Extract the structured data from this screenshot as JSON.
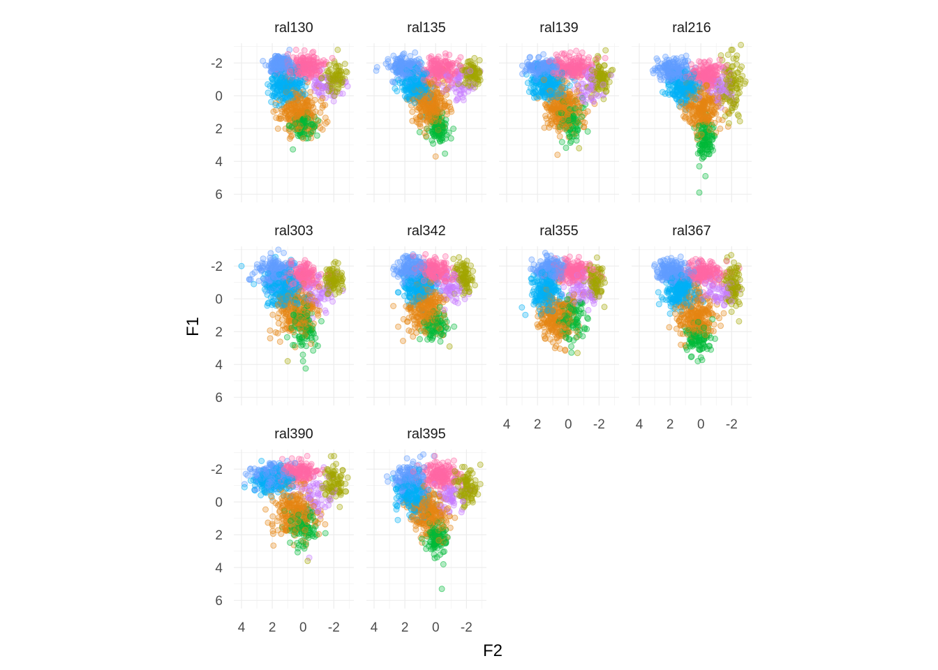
{
  "chart_data": {
    "type": "scatter",
    "xlabel": "F2",
    "ylabel": "F1",
    "x_reversed": true,
    "y_reversed": true,
    "xlim": [
      4.5,
      -3.3
    ],
    "ylim": [
      -3.2,
      6.5
    ],
    "x_ticks": [
      4,
      2,
      0,
      -2
    ],
    "y_ticks": [
      -2,
      0,
      2,
      4,
      6
    ],
    "grid": true,
    "legend": "none",
    "point_alpha": 0.3,
    "group_colors": [
      "#619CFF",
      "#00B0F6",
      "#F8766D",
      "#FF67A4",
      "#A3A500",
      "#E68613",
      "#00BA38",
      "#C77CFF",
      "#7CAE00",
      "#00BFC4"
    ],
    "panels": [
      {
        "title": "ral130",
        "clusters": [
          {
            "color": "#619CFF",
            "cx": 1.5,
            "cy": -1.9,
            "sx": 0.4,
            "sy": 0.3,
            "n": 180
          },
          {
            "color": "#00B0F6",
            "cx": 1.1,
            "cy": -0.6,
            "sx": 0.5,
            "sy": 0.5,
            "n": 200
          },
          {
            "color": "#FF67A4",
            "cx": -0.1,
            "cy": -1.8,
            "sx": 0.6,
            "sy": 0.35,
            "n": 180
          },
          {
            "color": "#A3A500",
            "cx": -2.1,
            "cy": -1.0,
            "sx": 0.3,
            "sy": 0.5,
            "n": 80
          },
          {
            "color": "#E68613",
            "cx": 0.2,
            "cy": 0.9,
            "sx": 0.7,
            "sy": 0.7,
            "n": 240
          },
          {
            "color": "#00BA38",
            "cx": 0.0,
            "cy": 1.9,
            "sx": 0.4,
            "sy": 0.4,
            "n": 90
          },
          {
            "color": "#C77CFF",
            "cx": -1.4,
            "cy": -0.7,
            "sx": 0.5,
            "sy": 0.5,
            "n": 60
          }
        ],
        "outliers": [
          {
            "x": 0.0,
            "y": 2.6,
            "color": "#E68613"
          },
          {
            "x": -1.9,
            "y": -2.3,
            "color": "#FF67A4"
          }
        ]
      },
      {
        "title": "ral135",
        "clusters": [
          {
            "color": "#619CFF",
            "cx": 1.9,
            "cy": -1.7,
            "sx": 0.5,
            "sy": 0.35,
            "n": 180
          },
          {
            "color": "#00B0F6",
            "cx": 1.3,
            "cy": -0.6,
            "sx": 0.5,
            "sy": 0.5,
            "n": 200
          },
          {
            "color": "#FF67A4",
            "cx": -0.4,
            "cy": -1.6,
            "sx": 0.6,
            "sy": 0.35,
            "n": 180
          },
          {
            "color": "#A3A500",
            "cx": -2.3,
            "cy": -1.4,
            "sx": 0.3,
            "sy": 0.4,
            "n": 90
          },
          {
            "color": "#E68613",
            "cx": 0.3,
            "cy": 0.6,
            "sx": 0.6,
            "sy": 0.7,
            "n": 240
          },
          {
            "color": "#00BA38",
            "cx": -0.1,
            "cy": 1.9,
            "sx": 0.35,
            "sy": 0.5,
            "n": 100
          },
          {
            "color": "#C77CFF",
            "cx": -1.5,
            "cy": -0.7,
            "sx": 0.5,
            "sy": 0.5,
            "n": 60
          }
        ],
        "outliers": [
          {
            "x": 0.0,
            "y": 3.7,
            "color": "#E68613"
          },
          {
            "x": -1.0,
            "y": 2.6,
            "color": "#00BA38"
          }
        ]
      },
      {
        "title": "ral139",
        "clusters": [
          {
            "color": "#619CFF",
            "cx": 1.7,
            "cy": -1.7,
            "sx": 0.5,
            "sy": 0.3,
            "n": 180
          },
          {
            "color": "#00B0F6",
            "cx": 1.3,
            "cy": -0.7,
            "sx": 0.5,
            "sy": 0.5,
            "n": 200
          },
          {
            "color": "#FF67A4",
            "cx": -0.3,
            "cy": -1.7,
            "sx": 0.6,
            "sy": 0.35,
            "n": 180
          },
          {
            "color": "#A3A500",
            "cx": -2.1,
            "cy": -1.1,
            "sx": 0.3,
            "sy": 0.5,
            "n": 90
          },
          {
            "color": "#E68613",
            "cx": 0.4,
            "cy": 0.7,
            "sx": 0.6,
            "sy": 0.7,
            "n": 240
          },
          {
            "color": "#00BA38",
            "cx": -0.2,
            "cy": 1.6,
            "sx": 0.4,
            "sy": 0.6,
            "n": 100
          },
          {
            "color": "#C77CFF",
            "cx": -1.4,
            "cy": -0.6,
            "sx": 0.5,
            "sy": 0.5,
            "n": 60
          }
        ],
        "outliers": [
          {
            "x": 0.7,
            "y": 3.6,
            "color": "#E68613"
          },
          {
            "x": -0.7,
            "y": 3.2,
            "color": "#A3A500"
          },
          {
            "x": -2.4,
            "y": -2.3,
            "color": "#FF67A4"
          }
        ]
      },
      {
        "title": "ral216",
        "clusters": [
          {
            "color": "#619CFF",
            "cx": 1.8,
            "cy": -1.5,
            "sx": 0.5,
            "sy": 0.35,
            "n": 170
          },
          {
            "color": "#00B0F6",
            "cx": 1.1,
            "cy": -0.5,
            "sx": 0.5,
            "sy": 0.5,
            "n": 200
          },
          {
            "color": "#FF67A4",
            "cx": -0.3,
            "cy": -1.3,
            "sx": 0.5,
            "sy": 0.35,
            "n": 160
          },
          {
            "color": "#A3A500",
            "cx": -2.0,
            "cy": -0.6,
            "sx": 0.35,
            "sy": 0.9,
            "n": 110
          },
          {
            "color": "#E68613",
            "cx": -0.1,
            "cy": 0.9,
            "sx": 0.6,
            "sy": 0.7,
            "n": 230
          },
          {
            "color": "#00BA38",
            "cx": -0.3,
            "cy": 2.7,
            "sx": 0.3,
            "sy": 0.6,
            "n": 100
          },
          {
            "color": "#C77CFF",
            "cx": -1.3,
            "cy": -0.4,
            "sx": 0.5,
            "sy": 0.5,
            "n": 60
          }
        ],
        "outliers": [
          {
            "x": 0.1,
            "y": 4.3,
            "color": "#00BA38"
          },
          {
            "x": -0.3,
            "y": 4.9,
            "color": "#00BA38"
          },
          {
            "x": 0.1,
            "y": 5.9,
            "color": "#00BA38"
          },
          {
            "x": -2.6,
            "y": -3.1,
            "color": "#A3A500"
          },
          {
            "x": 2.8,
            "y": -1.7,
            "color": "#619CFF"
          }
        ]
      },
      {
        "title": "ral303",
        "clusters": [
          {
            "color": "#619CFF",
            "cx": 1.7,
            "cy": -1.5,
            "sx": 0.6,
            "sy": 0.45,
            "n": 190
          },
          {
            "color": "#00B0F6",
            "cx": 1.2,
            "cy": -0.5,
            "sx": 0.6,
            "sy": 0.6,
            "n": 200
          },
          {
            "color": "#FF67A4",
            "cx": 0.1,
            "cy": -1.4,
            "sx": 0.6,
            "sy": 0.4,
            "n": 170
          },
          {
            "color": "#A3A500",
            "cx": -2.0,
            "cy": -1.2,
            "sx": 0.3,
            "sy": 0.5,
            "n": 90
          },
          {
            "color": "#E68613",
            "cx": 0.5,
            "cy": 0.7,
            "sx": 0.7,
            "sy": 0.8,
            "n": 230
          },
          {
            "color": "#00BA38",
            "cx": 0.0,
            "cy": 1.6,
            "sx": 0.4,
            "sy": 0.7,
            "n": 110
          },
          {
            "color": "#C77CFF",
            "cx": -1.0,
            "cy": -0.4,
            "sx": 0.6,
            "sy": 0.6,
            "n": 60
          }
        ],
        "outliers": [
          {
            "x": 4.0,
            "y": -2.0,
            "color": "#00B0F6"
          },
          {
            "x": 3.5,
            "y": -1.2,
            "color": "#619CFF"
          },
          {
            "x": 3.2,
            "y": -0.9,
            "color": "#00B0F6"
          },
          {
            "x": 1.6,
            "y": -3.0,
            "color": "#619CFF"
          },
          {
            "x": 1.0,
            "y": 3.8,
            "color": "#A3A500"
          },
          {
            "x": 0.0,
            "y": 3.8,
            "color": "#00BA38"
          }
        ]
      },
      {
        "title": "ral342",
        "clusters": [
          {
            "color": "#619CFF",
            "cx": 1.5,
            "cy": -1.8,
            "sx": 0.5,
            "sy": 0.35,
            "n": 170
          },
          {
            "color": "#00B0F6",
            "cx": 1.2,
            "cy": -0.7,
            "sx": 0.5,
            "sy": 0.5,
            "n": 200
          },
          {
            "color": "#FF67A4",
            "cx": 0.1,
            "cy": -1.7,
            "sx": 0.6,
            "sy": 0.35,
            "n": 170
          },
          {
            "color": "#A3A500",
            "cx": -1.8,
            "cy": -1.3,
            "sx": 0.3,
            "sy": 0.5,
            "n": 90
          },
          {
            "color": "#E68613",
            "cx": 0.7,
            "cy": 0.6,
            "sx": 0.6,
            "sy": 0.7,
            "n": 230
          },
          {
            "color": "#00BA38",
            "cx": 0.0,
            "cy": 1.6,
            "sx": 0.4,
            "sy": 0.5,
            "n": 100
          },
          {
            "color": "#C77CFF",
            "cx": -1.0,
            "cy": -0.6,
            "sx": 0.5,
            "sy": 0.5,
            "n": 60
          }
        ],
        "outliers": [
          {
            "x": 2.7,
            "y": -1.5,
            "color": "#619CFF"
          },
          {
            "x": -0.9,
            "y": 2.9,
            "color": "#A3A500"
          }
        ]
      },
      {
        "title": "ral355",
        "clusters": [
          {
            "color": "#619CFF",
            "cx": 1.1,
            "cy": -1.8,
            "sx": 0.5,
            "sy": 0.35,
            "n": 170
          },
          {
            "color": "#00B0F6",
            "cx": 1.4,
            "cy": -0.5,
            "sx": 0.5,
            "sy": 0.6,
            "n": 200
          },
          {
            "color": "#FF67A4",
            "cx": -0.3,
            "cy": -1.7,
            "sx": 0.6,
            "sy": 0.35,
            "n": 170
          },
          {
            "color": "#A3A500",
            "cx": -1.7,
            "cy": -1.1,
            "sx": 0.3,
            "sy": 0.5,
            "n": 90
          },
          {
            "color": "#E68613",
            "cx": 0.8,
            "cy": 1.1,
            "sx": 0.6,
            "sy": 0.7,
            "n": 230
          },
          {
            "color": "#00BA38",
            "cx": -0.2,
            "cy": 1.4,
            "sx": 0.5,
            "sy": 0.6,
            "n": 100
          },
          {
            "color": "#C77CFF",
            "cx": -1.0,
            "cy": -0.5,
            "sx": 0.5,
            "sy": 0.5,
            "n": 60
          }
        ],
        "outliers": [
          {
            "x": 0.2,
            "y": 3.1,
            "color": "#E68613"
          },
          {
            "x": -0.6,
            "y": 3.3,
            "color": "#A3A500"
          },
          {
            "x": -0.2,
            "y": 2.9,
            "color": "#00BA38"
          }
        ]
      },
      {
        "title": "ral367",
        "clusters": [
          {
            "color": "#619CFF",
            "cx": 1.8,
            "cy": -1.7,
            "sx": 0.55,
            "sy": 0.35,
            "n": 180
          },
          {
            "color": "#00B0F6",
            "cx": 1.3,
            "cy": -0.5,
            "sx": 0.5,
            "sy": 0.5,
            "n": 200
          },
          {
            "color": "#FF67A4",
            "cx": -0.3,
            "cy": -1.6,
            "sx": 0.6,
            "sy": 0.35,
            "n": 170
          },
          {
            "color": "#A3A500",
            "cx": -2.1,
            "cy": -1.0,
            "sx": 0.3,
            "sy": 0.7,
            "n": 100
          },
          {
            "color": "#E68613",
            "cx": 0.3,
            "cy": 1.0,
            "sx": 0.6,
            "sy": 0.7,
            "n": 230
          },
          {
            "color": "#00BA38",
            "cx": 0.2,
            "cy": 2.4,
            "sx": 0.4,
            "sy": 0.5,
            "n": 100
          },
          {
            "color": "#C77CFF",
            "cx": -1.3,
            "cy": -0.4,
            "sx": 0.5,
            "sy": 0.5,
            "n": 60
          }
        ],
        "outliers": [
          {
            "x": 3.0,
            "y": -2.1,
            "color": "#619CFF"
          },
          {
            "x": 2.8,
            "y": -1.3,
            "color": "#619CFF"
          },
          {
            "x": 0.2,
            "y": 3.8,
            "color": "#00BA38"
          },
          {
            "x": 1.3,
            "y": 2.8,
            "color": "#E68613"
          }
        ]
      },
      {
        "title": "ral390",
        "clusters": [
          {
            "color": "#619CFF",
            "cx": 2.0,
            "cy": -1.6,
            "sx": 0.6,
            "sy": 0.35,
            "n": 170
          },
          {
            "color": "#00B0F6",
            "cx": 1.9,
            "cy": -1.3,
            "sx": 0.6,
            "sy": 0.4,
            "n": 160
          },
          {
            "color": "#FF67A4",
            "cx": 0.3,
            "cy": -1.8,
            "sx": 0.6,
            "sy": 0.35,
            "n": 160
          },
          {
            "color": "#A3A500",
            "cx": -2.0,
            "cy": -1.2,
            "sx": 0.35,
            "sy": 0.5,
            "n": 90
          },
          {
            "color": "#E68613",
            "cx": 0.5,
            "cy": 0.6,
            "sx": 0.7,
            "sy": 0.8,
            "n": 240
          },
          {
            "color": "#00BA38",
            "cx": 0.0,
            "cy": 1.4,
            "sx": 0.5,
            "sy": 0.6,
            "n": 110
          },
          {
            "color": "#C77CFF",
            "cx": -0.8,
            "cy": -0.4,
            "sx": 0.6,
            "sy": 0.6,
            "n": 60
          }
        ],
        "outliers": [
          {
            "x": 3.8,
            "y": -0.9,
            "color": "#00B0F6"
          },
          {
            "x": 3.4,
            "y": -1.3,
            "color": "#00B0F6"
          },
          {
            "x": 2.7,
            "y": -2.5,
            "color": "#00B0F6"
          },
          {
            "x": -0.4,
            "y": 3.4,
            "color": "#C77CFF"
          },
          {
            "x": -0.3,
            "y": 3.6,
            "color": "#A3A500"
          }
        ]
      },
      {
        "title": "ral395",
        "clusters": [
          {
            "color": "#619CFF",
            "cx": 1.8,
            "cy": -1.3,
            "sx": 0.5,
            "sy": 0.5,
            "n": 170
          },
          {
            "color": "#00B0F6",
            "cx": 1.5,
            "cy": -0.4,
            "sx": 0.5,
            "sy": 0.6,
            "n": 200
          },
          {
            "color": "#FF67A4",
            "cx": -0.1,
            "cy": -1.6,
            "sx": 0.6,
            "sy": 0.4,
            "n": 170
          },
          {
            "color": "#A3A500",
            "cx": -2.0,
            "cy": -1.0,
            "sx": 0.35,
            "sy": 0.6,
            "n": 100
          },
          {
            "color": "#E68613",
            "cx": 0.4,
            "cy": 0.8,
            "sx": 0.6,
            "sy": 0.7,
            "n": 230
          },
          {
            "color": "#00BA38",
            "cx": -0.1,
            "cy": 2.2,
            "sx": 0.35,
            "sy": 0.45,
            "n": 100
          },
          {
            "color": "#C77CFF",
            "cx": -0.9,
            "cy": -0.5,
            "sx": 0.5,
            "sy": 0.5,
            "n": 60
          }
        ],
        "outliers": [
          {
            "x": 0.8,
            "y": -2.9,
            "color": "#619CFF"
          },
          {
            "x": -0.4,
            "y": 5.3,
            "color": "#00BA38"
          },
          {
            "x": -0.5,
            "y": 3.8,
            "color": "#00BA38"
          },
          {
            "x": 0.1,
            "y": 3.2,
            "color": "#00BA38"
          }
        ]
      }
    ]
  }
}
